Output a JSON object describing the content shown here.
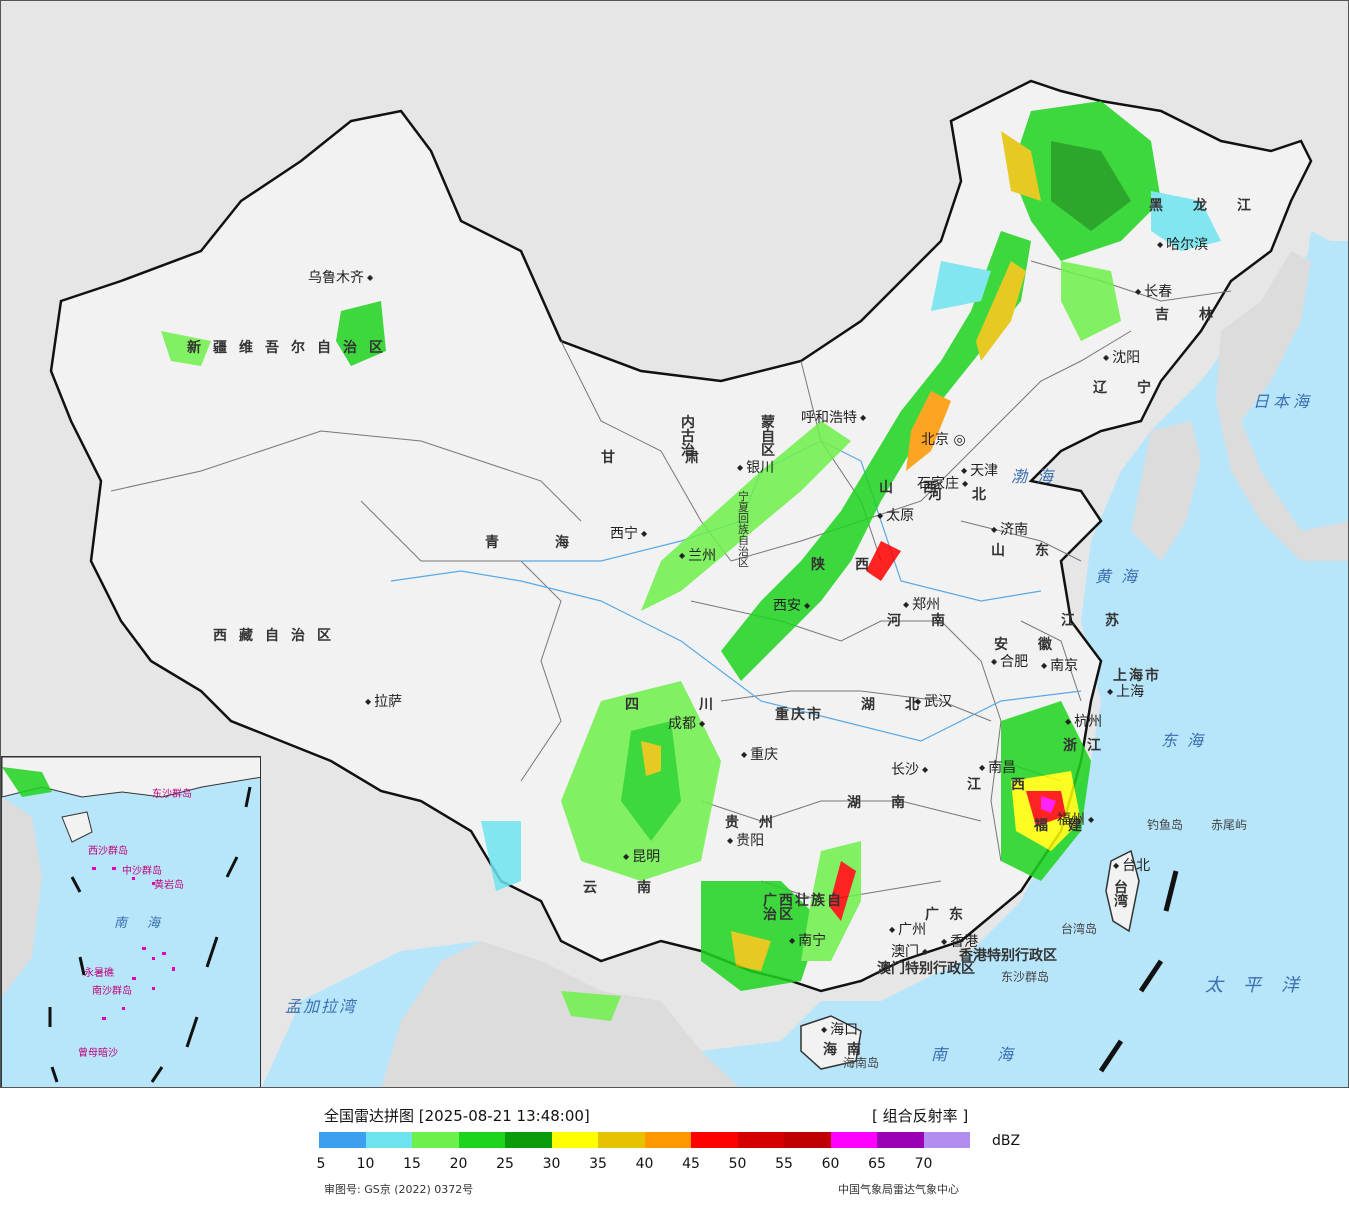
{
  "map": {
    "provinces": [
      "新疆维吾尔自治区",
      "西藏自治区",
      "青海",
      "甘肃",
      "内蒙古自治区",
      "黑龙江",
      "吉林",
      "辽宁",
      "河北",
      "山西",
      "山东",
      "江苏",
      "安徽",
      "河南",
      "陕西",
      "四川",
      "重庆市",
      "湖北",
      "湖南",
      "江西",
      "浙江",
      "福建",
      "广东",
      "广西壮族自治区",
      "云南",
      "贵州",
      "海南",
      "台湾",
      "上海市",
      "宁夏回族自治区",
      "香港特别行政区",
      "澳门特别行政区"
    ],
    "cities": [
      "乌鲁木齐",
      "拉萨",
      "西宁",
      "兰州",
      "银川",
      "呼和浩特",
      "北京",
      "天津",
      "石家庄",
      "太原",
      "济南",
      "郑州",
      "西安",
      "成都",
      "重庆",
      "贵阳",
      "昆明",
      "南宁",
      "长沙",
      "武汉",
      "合肥",
      "南京",
      "上海",
      "杭州",
      "南昌",
      "福州",
      "广州",
      "香港",
      "澳门",
      "台北",
      "海口",
      "沈阳",
      "长春",
      "哈尔滨"
    ],
    "seas": [
      "渤海",
      "黄海",
      "东海",
      "日本海",
      "太平洋",
      "南海",
      "孟加拉湾"
    ],
    "islands": [
      "钓鱼岛",
      "赤尾屿",
      "台湾岛",
      "东沙群岛",
      "海南岛"
    ],
    "inset_labels": [
      "东沙群岛",
      "西沙群岛",
      "中沙群岛",
      "黄岩岛",
      "南沙群岛",
      "曾母暗沙",
      "永暑礁",
      "南海"
    ],
    "capital_marker": "北京"
  },
  "legend": {
    "title": "全国雷达拼图 [2025-08-21 13:48:00]",
    "product": "[ 组合反射率 ]",
    "unit": "dBZ",
    "colors": [
      "#3e9ff0",
      "#6ee4f0",
      "#6ef04a",
      "#1ed41e",
      "#0a9a0a",
      "#ffff00",
      "#e6c200",
      "#ff9800",
      "#ff0000",
      "#d40000",
      "#c00000",
      "#ff00ff",
      "#9a00b4",
      "#b38cf0"
    ],
    "ticks": [
      "5",
      "10",
      "15",
      "20",
      "25",
      "30",
      "35",
      "40",
      "45",
      "50",
      "55",
      "60",
      "65",
      "70"
    ],
    "approval": "审图号: GS京 (2022) 0372号",
    "source": "中国气象局雷达气象中心"
  }
}
